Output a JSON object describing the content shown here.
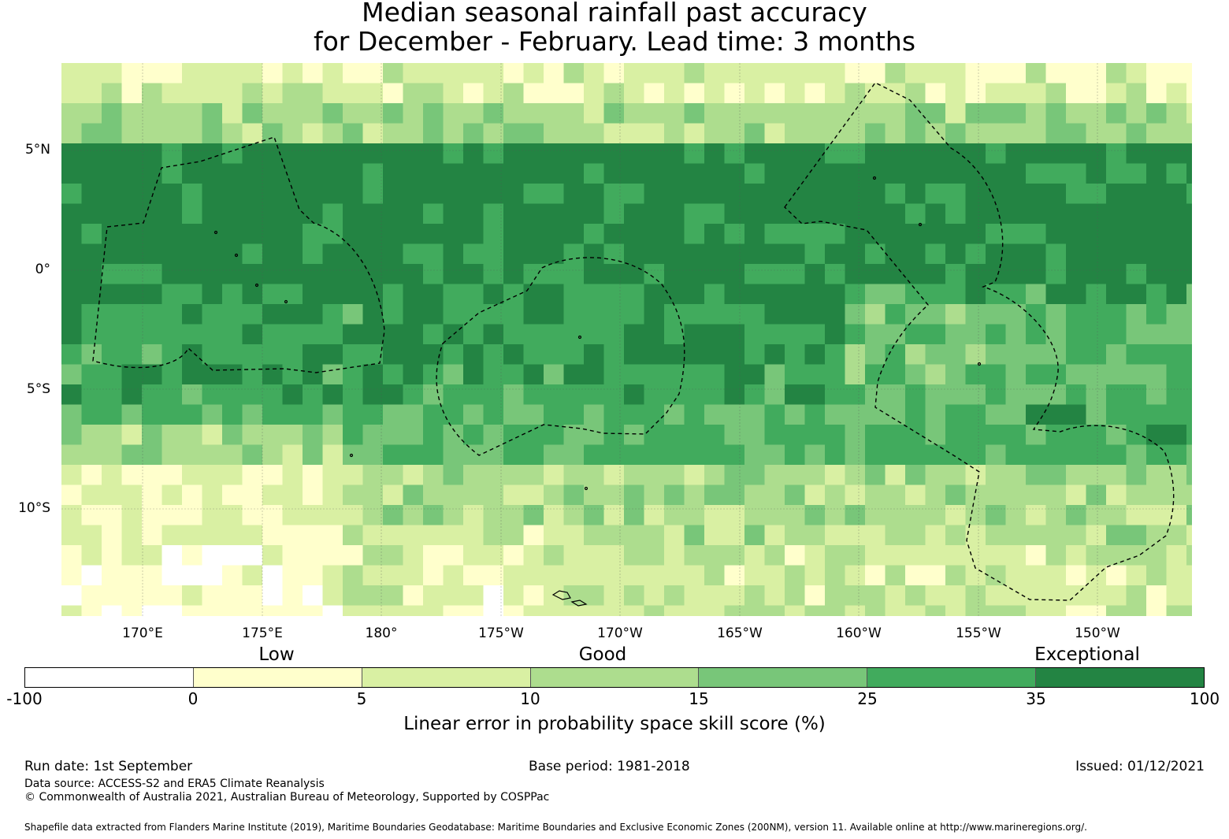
{
  "title": {
    "line1": "Median seasonal rainfall past accuracy",
    "line2": "for December - February. Lead time: 3 months"
  },
  "map": {
    "lat_labels": [
      "5°N",
      "0°",
      "5°S",
      "10°S"
    ],
    "lon_labels": [
      "170°E",
      "175°E",
      "180°",
      "175°W",
      "170°W",
      "165°W",
      "160°W",
      "155°W",
      "150°W"
    ],
    "line_color": "#000000"
  },
  "legend": {
    "category_labels": [
      "Low",
      "Good",
      "Exceptional"
    ],
    "bins": [
      {
        "from": -100,
        "to": 0,
        "color": "#ffffff"
      },
      {
        "from": 0,
        "to": 5,
        "color": "#ffffcc"
      },
      {
        "from": 5,
        "to": 10,
        "color": "#d9f0a3"
      },
      {
        "from": 10,
        "to": 15,
        "color": "#addd8e"
      },
      {
        "from": 15,
        "to": 25,
        "color": "#78c679"
      },
      {
        "from": 25,
        "to": 35,
        "color": "#41ab5d"
      },
      {
        "from": 35,
        "to": 100,
        "color": "#238443"
      }
    ],
    "tick_labels": [
      "-100",
      "0",
      "5",
      "10",
      "15",
      "25",
      "35",
      "100"
    ],
    "title": "Linear error in probability space skill score (%)"
  },
  "footer": {
    "run_date": "Run date: 1st September",
    "base_period": "Base period: 1981-2018",
    "issued": "Issued: 01/12/2021",
    "data_source": "Data source: ACCESS-S2 and ERA5 Climate Reanalysis",
    "copyright": "© Commonwealth of Australia 2021, Australian Bureau of Meteorology, Supported by COSPPac",
    "shapefile_note": "Shapefile data extracted from Flanders Marine Institute (2019), Maritime Boundaries Geodatabase: Maritime Boundaries and Exclusive Economic Zones (200NM), version 11. Available online at http://www.marineregions.org/."
  }
}
